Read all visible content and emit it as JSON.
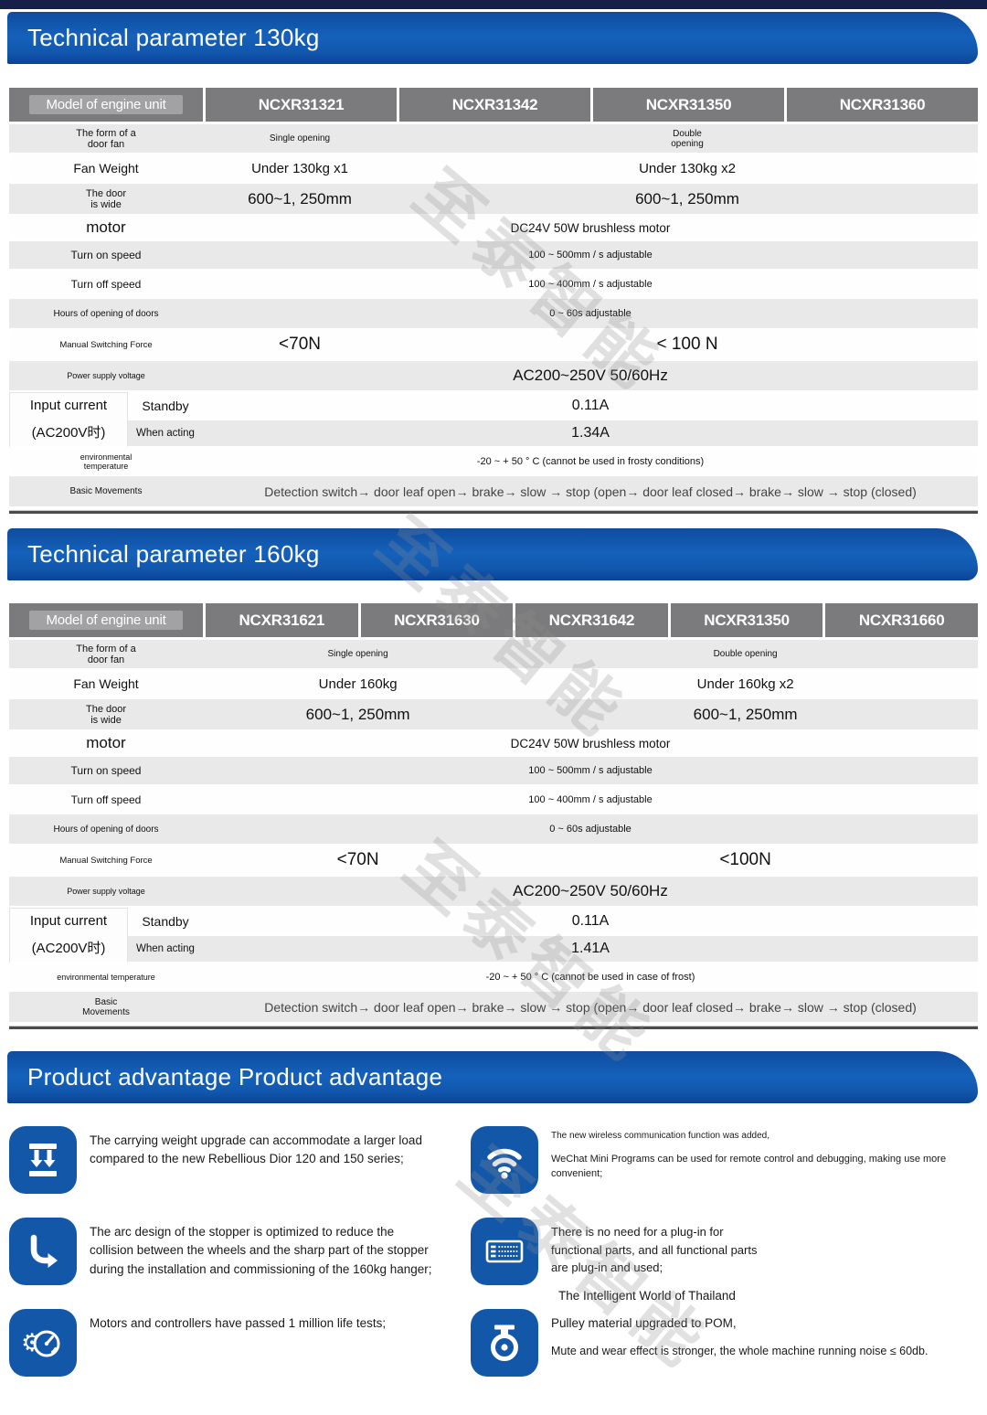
{
  "watermark": {
    "text": "至泰智能"
  },
  "banner_130": {
    "title": "Technical parameter 130kg"
  },
  "banner_160": {
    "title": "Technical parameter 160kg"
  },
  "banner_adv": {
    "title": "Product advantage Product advantage"
  },
  "colors": {
    "banner_blue": "#1561bb",
    "header_gray": "#7b7b7d",
    "row_stripe_gray": "#e9e9ea",
    "icon_blue": "#1357a9",
    "top_strip_navy": "#151f47"
  },
  "tables": [
    {
      "id": "table-130",
      "name": "spec-table-130kg",
      "header_label": "Model of engine unit",
      "models": [
        "NCXR31321",
        "NCXR31342",
        "NCXR31350",
        "NCXR31360"
      ],
      "rows": [
        {
          "label": "The form of a\ndoor fan",
          "cells": [
            {
              "text": "Single opening",
              "span": 1
            },
            {
              "text": "Double\nopening",
              "span": 3
            }
          ]
        },
        {
          "label": "Fan Weight",
          "cells": [
            {
              "text": "Under 130kg x1",
              "span": 1
            },
            {
              "text": "Under 130kg x2",
              "span": 3
            }
          ]
        },
        {
          "label": "The door\nis wide",
          "cells": [
            {
              "text": "600~1, 250mm",
              "span": 1
            },
            {
              "text": "600~1, 250mm",
              "span": 3
            }
          ]
        },
        {
          "label": "motor",
          "cells": [
            {
              "text": "DC24V 50W brushless motor",
              "span": 4
            }
          ]
        },
        {
          "label": "Turn on speed",
          "cells": [
            {
              "text": "100 ~ 500mm / s adjustable",
              "span": 4
            }
          ]
        },
        {
          "label": "Turn off speed",
          "cells": [
            {
              "text": "100 ~ 400mm / s adjustable",
              "span": 4
            }
          ]
        },
        {
          "label": "Hours of opening of doors",
          "cells": [
            {
              "text": "0 ~ 60s adjustable",
              "span": 4
            }
          ]
        },
        {
          "label": "Manual Switching Force",
          "cells": [
            {
              "text": "<70N",
              "span": 1
            },
            {
              "text": "< 100 N",
              "span": 3
            }
          ]
        },
        {
          "label": "Power supply voltage",
          "cells": [
            {
              "text": "AC200~250V  50/60Hz",
              "span": 4
            }
          ]
        },
        {
          "group_label_line1": "Input current",
          "group_label_line2": "(AC200V时)",
          "sub_label": "Standby",
          "cells": [
            {
              "text": "0.11A",
              "span": 4
            }
          ]
        },
        {
          "sub_label": "When acting",
          "cells": [
            {
              "text": "1.34A",
              "span": 4
            }
          ]
        },
        {
          "label": "environmental\ntemperature",
          "cells": [
            {
              "text": "-20 ~ + 50 ° C (cannot be used in frosty conditions)",
              "span": 4
            }
          ]
        },
        {
          "label": "Basic Movements",
          "cells": [
            {
              "text": "Detection switch→ door leaf open→ brake→ slow → stop (open→ door leaf closed→ brake→ slow → stop (closed)",
              "span": 4
            }
          ]
        }
      ]
    },
    {
      "id": "table-160",
      "name": "spec-table-160kg",
      "header_label": "Model of engine unit",
      "models": [
        "NCXR31621",
        "NCXR31630",
        "NCXR31642",
        "NCXR31350",
        "NCXR31660"
      ],
      "rows": [
        {
          "label": "The form of a\ndoor fan",
          "cells": [
            {
              "text": "Single opening",
              "span": 2
            },
            {
              "text": "Double opening",
              "span": 3
            }
          ]
        },
        {
          "label": "Fan Weight",
          "cells": [
            {
              "text": "Under 160kg",
              "span": 2
            },
            {
              "text": "Under 160kg x2",
              "span": 3
            }
          ]
        },
        {
          "label": "The door\nis wide",
          "cells": [
            {
              "text": "600~1, 250mm",
              "span": 2
            },
            {
              "text": "600~1, 250mm",
              "span": 3
            }
          ]
        },
        {
          "label": "motor",
          "cells": [
            {
              "text": "DC24V 50W brushless motor",
              "span": 5
            }
          ]
        },
        {
          "label": "Turn on speed",
          "cells": [
            {
              "text": "100 ~ 500mm / s adjustable",
              "span": 5
            }
          ]
        },
        {
          "label": "Turn off speed",
          "cells": [
            {
              "text": "100 ~ 400mm / s adjustable",
              "span": 5
            }
          ]
        },
        {
          "label": "Hours of opening of doors",
          "cells": [
            {
              "text": "0 ~ 60s adjustable",
              "span": 5
            }
          ]
        },
        {
          "label": "Manual Switching Force",
          "cells": [
            {
              "text": "<70N",
              "span": 2
            },
            {
              "text": "<100N",
              "span": 3
            }
          ]
        },
        {
          "label": "Power supply voltage",
          "cells": [
            {
              "text": "AC200~250V  50/60Hz",
              "span": 5
            }
          ]
        },
        {
          "group_label_line1": "Input current",
          "group_label_line2": "(AC200V时)",
          "sub_label": "Standby",
          "cells": [
            {
              "text": "0.11A",
              "span": 5
            }
          ]
        },
        {
          "sub_label": "When acting",
          "cells": [
            {
              "text": "1.41A",
              "span": 5
            }
          ]
        },
        {
          "label": "environmental temperature",
          "cells": [
            {
              "text": "-20 ~ + 50 ° C (cannot be used in case of frost)",
              "span": 5
            }
          ]
        },
        {
          "label": "Basic\nMovements",
          "cells": [
            {
              "text": "Detection switch→ door leaf open→ brake→ slow → stop (open→ door leaf closed→ brake→ slow → stop (closed)",
              "span": 5
            }
          ]
        }
      ]
    }
  ],
  "advantages": {
    "left": [
      {
        "icon": "load-weight-icon",
        "lines": [
          "The carrying weight upgrade can accommodate a larger load compared to the new Rebellious Dior 120 and 150 series;"
        ]
      },
      {
        "icon": "arc-arrow-icon",
        "lines": [
          "The arc design of the stopper is optimized to reduce the collision between the wheels and the sharp part of the stopper during the installation and commissioning of the 160kg hanger;"
        ]
      },
      {
        "icon": "gear-gauge-icon",
        "lines": [
          "Motors and controllers have passed 1 million life tests;"
        ]
      }
    ],
    "right": [
      {
        "icon": "wifi-icon",
        "lines": [
          "The new wireless communication function was added,",
          "WeChat Mini Programs can be used for remote control and debugging, making use more convenient;"
        ]
      },
      {
        "icon": "terminal-block-icon",
        "lines": [
          "There is no need for a plug-in for functional parts, and all functional parts are plug-in and used;",
          "The Intelligent World of Thailand"
        ]
      },
      {
        "icon": "caster-wheel-icon",
        "lines": [
          "Pulley material upgraded to POM,",
          "Mute and wear effect is stronger, the whole machine running noise ≤ 60db."
        ]
      }
    ]
  }
}
